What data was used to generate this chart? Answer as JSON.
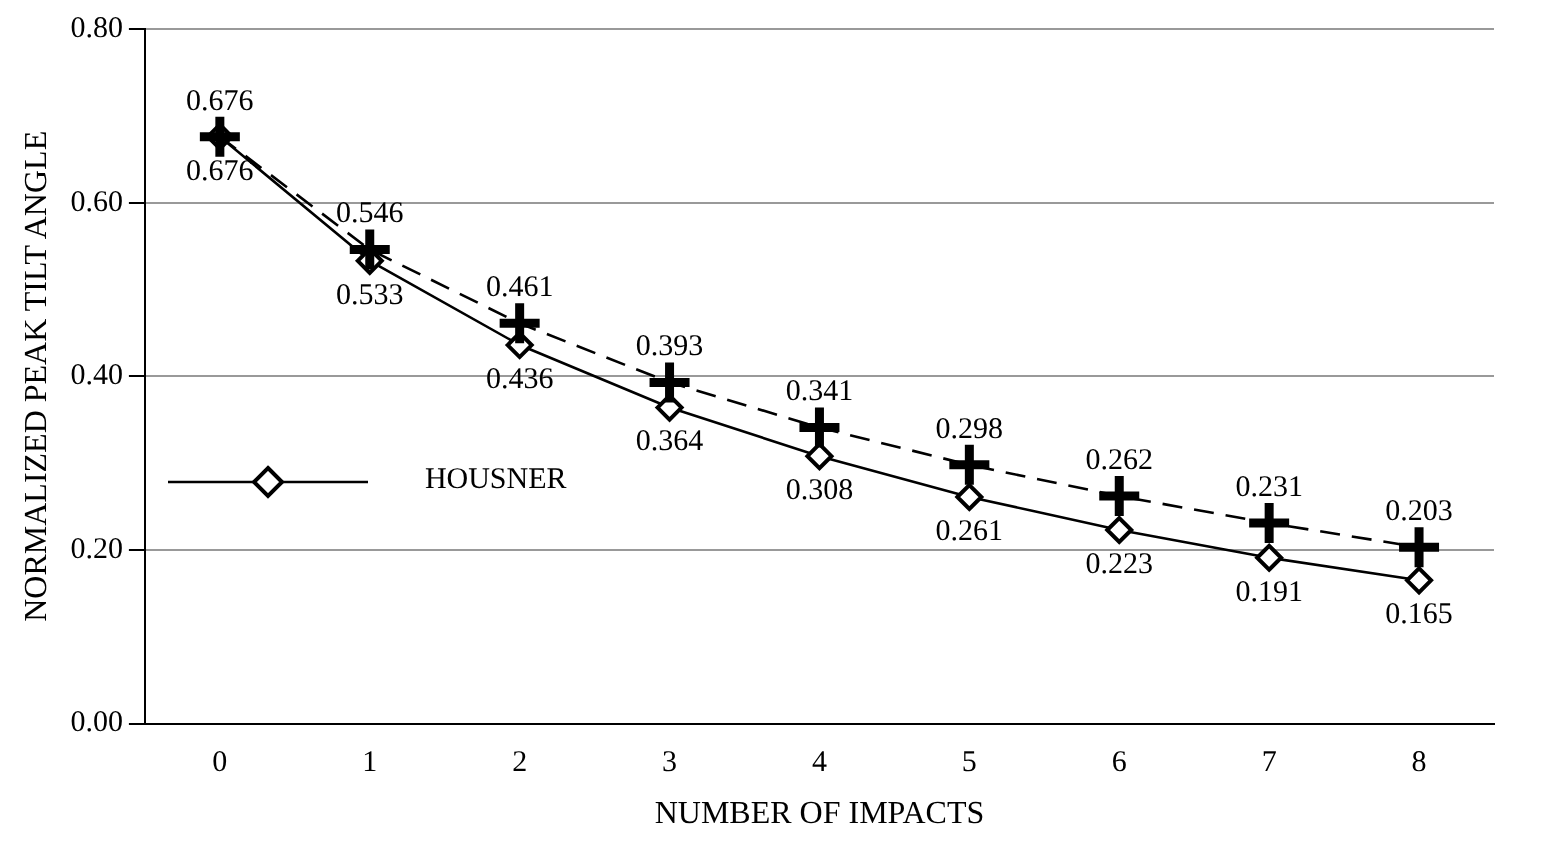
{
  "chart_data": {
    "type": "line",
    "xlabel": "NUMBER OF IMPACTS",
    "ylabel": "NORMALIZED PEAK TILT ANGLE",
    "categories": [
      "0",
      "1",
      "2",
      "3",
      "4",
      "5",
      "6",
      "7",
      "8"
    ],
    "series": [
      {
        "name": "HOUSNER",
        "color": "#000000",
        "marker": "diamond",
        "line_style": "solid",
        "values": [
          0.676,
          0.533,
          0.436,
          0.364,
          0.308,
          0.261,
          0.223,
          0.191,
          0.165
        ]
      },
      {
        "color": "#000000",
        "marker": "cross",
        "line_style": "dashed",
        "values": [
          0.676,
          0.546,
          0.461,
          0.393,
          0.341,
          0.298,
          0.262,
          0.231,
          0.203
        ]
      }
    ],
    "ylim": [
      0,
      0.8
    ],
    "yticks": [
      {
        "value": 0,
        "label": "0.00"
      },
      {
        "value": 0.2,
        "label": "0.20"
      },
      {
        "value": 0.4,
        "label": "0.40"
      },
      {
        "value": 0.6,
        "label": "0.60"
      },
      {
        "value": 0.8,
        "label": "0.80"
      }
    ],
    "grid": "y",
    "legend": "left",
    "data_labels": true
  }
}
